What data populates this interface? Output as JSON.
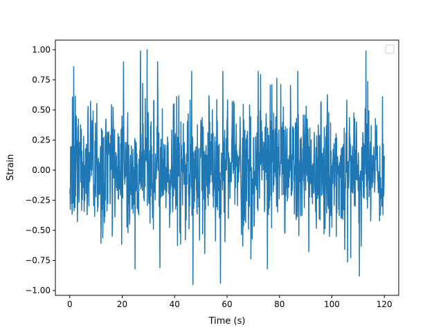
{
  "chart_data": {
    "type": "line",
    "xlabel": "Time (s)",
    "ylabel": "Strain",
    "xlim": [
      -5.5,
      125.5
    ],
    "ylim": [
      -1.04,
      1.08
    ],
    "xticks": [
      0,
      20,
      40,
      60,
      80,
      100,
      120
    ],
    "xtick_labels": [
      "0",
      "20",
      "40",
      "60",
      "80",
      "100",
      "120"
    ],
    "yticks": [
      -1.0,
      -0.75,
      -0.5,
      -0.25,
      0.0,
      0.25,
      0.5,
      0.75,
      1.0
    ],
    "ytick_labels": [
      "−1.00",
      "−0.75",
      "−0.50",
      "−0.25",
      "0.00",
      "0.25",
      "0.50",
      "0.75",
      "1.00"
    ],
    "grid": false,
    "legend": {
      "placement": "upper-right",
      "entries": []
    },
    "series": [
      {
        "color": "#1f77b4",
        "sample_interval_s": 0.1,
        "x_start": 0,
        "x_end": 120,
        "distribution": "normal, mean 0, sd about 0.28",
        "peak_values": [
          {
            "x": 1.5,
            "y": 0.86
          },
          {
            "x": 20.5,
            "y": 0.9
          },
          {
            "x": 27,
            "y": 0.99
          },
          {
            "x": 29.5,
            "y": 1.0
          },
          {
            "x": 33.5,
            "y": 0.9
          },
          {
            "x": 47,
            "y": -0.95
          },
          {
            "x": 57.5,
            "y": -0.94
          },
          {
            "x": 113,
            "y": 0.99
          },
          {
            "x": 110.5,
            "y": -0.88
          }
        ]
      }
    ]
  }
}
